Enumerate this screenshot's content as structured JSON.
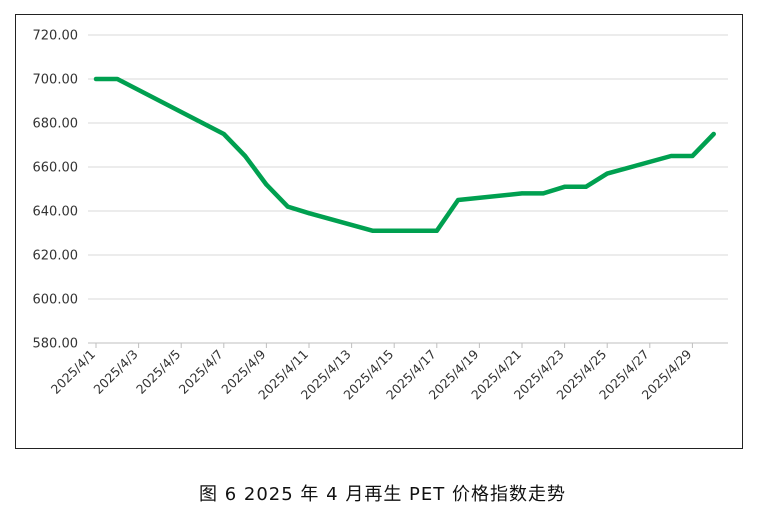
{
  "caption": "图 6  2025 年 4 月再生 PET 价格指数走势",
  "colors": {
    "line": "#00a050",
    "grid": "#d9d9d9",
    "axis": "#bfbfbf"
  },
  "chart_data": {
    "type": "line",
    "title": "",
    "xlabel": "",
    "ylabel": "",
    "ylim": [
      580,
      720
    ],
    "yticks": [
      "720.00",
      "700.00",
      "680.00",
      "660.00",
      "640.00",
      "620.00",
      "600.00",
      "580.00"
    ],
    "grid": true,
    "xtick_labels": [
      "2025/4/1",
      "2025/4/3",
      "2025/4/5",
      "2025/4/7",
      "2025/4/9",
      "2025/4/11",
      "2025/4/13",
      "2025/4/15",
      "2025/4/17",
      "2025/4/19",
      "2025/4/21",
      "2025/4/23",
      "2025/4/25",
      "2025/4/27",
      "2025/4/29"
    ],
    "x": [
      "2025/4/1",
      "2025/4/2",
      "2025/4/7",
      "2025/4/8",
      "2025/4/9",
      "2025/4/10",
      "2025/4/11",
      "2025/4/14",
      "2025/4/17",
      "2025/4/18",
      "2025/4/21",
      "2025/4/22",
      "2025/4/23",
      "2025/4/24",
      "2025/4/25",
      "2025/4/28",
      "2025/4/29",
      "2025/4/30"
    ],
    "series": [
      {
        "values": [
          700,
          700,
          675,
          665,
          652,
          642,
          639,
          631,
          631,
          645,
          648,
          648,
          651,
          651,
          657,
          665,
          665,
          675
        ]
      }
    ]
  }
}
